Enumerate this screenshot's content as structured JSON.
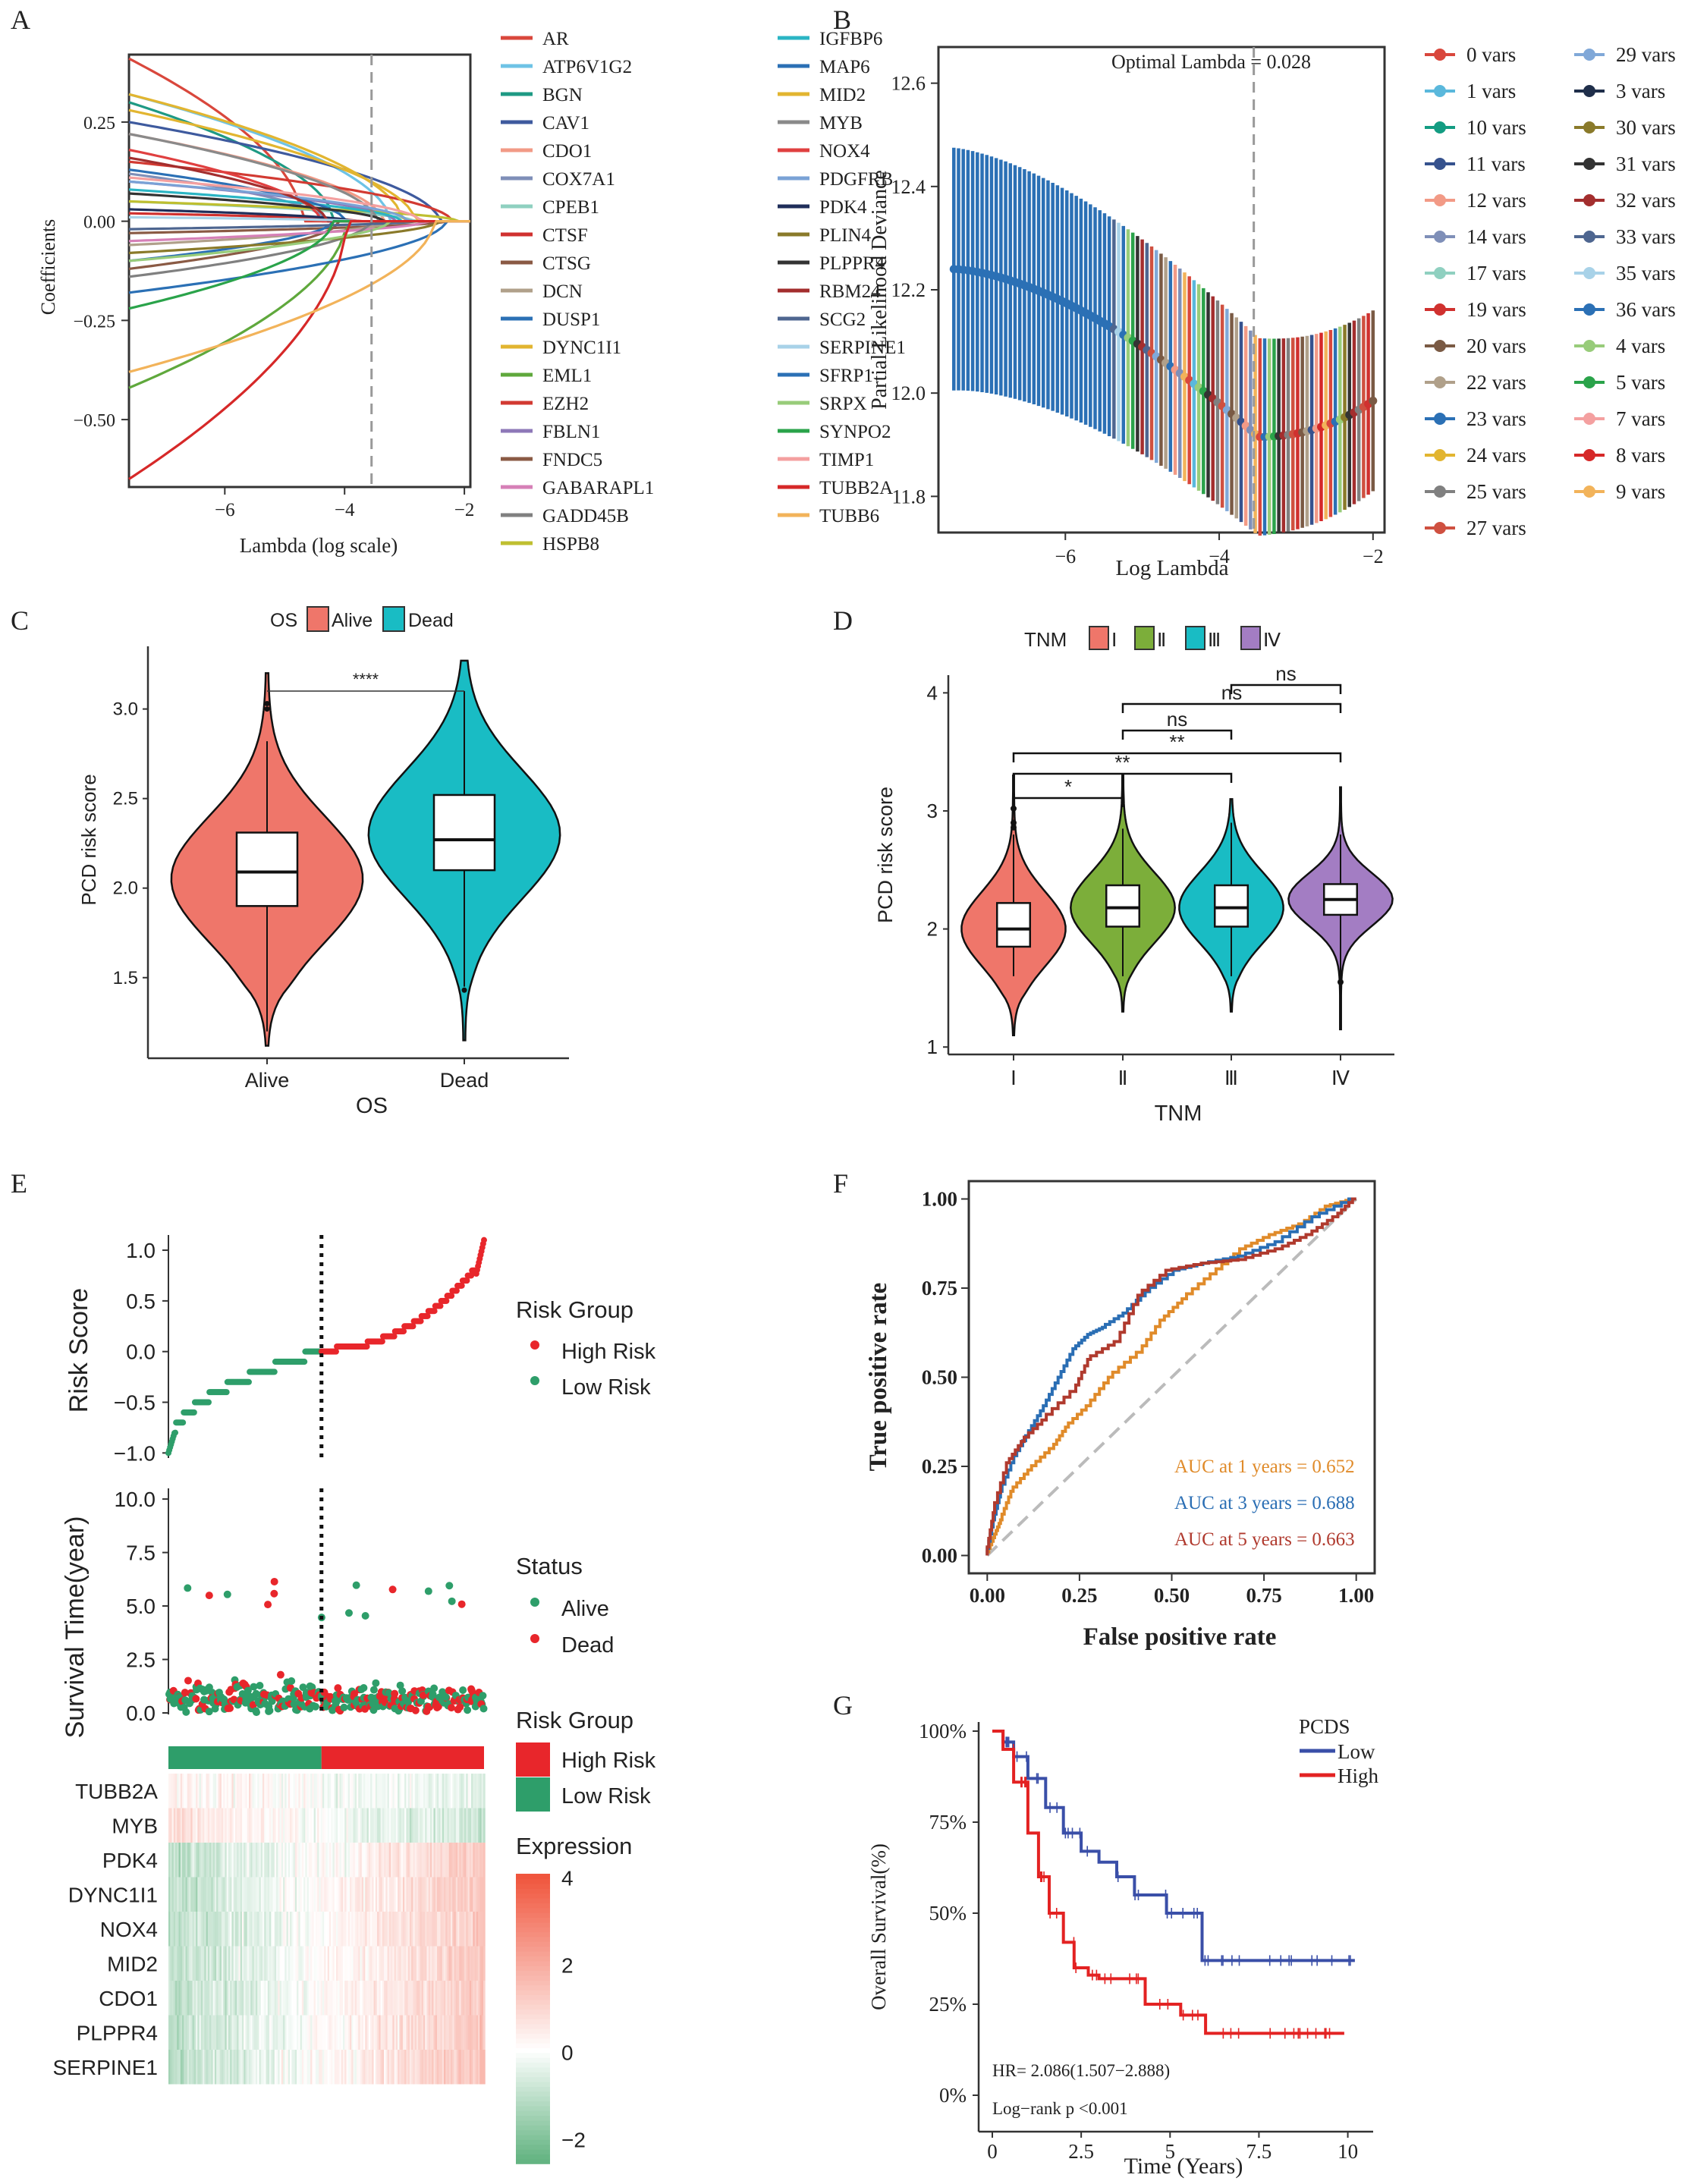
{
  "panel_labels": {
    "A": "A",
    "B": "B",
    "C": "C",
    "D": "D",
    "E": "E",
    "F": "F",
    "G": "G"
  },
  "colors": {
    "alive": "#EF766A",
    "dead": "#19BCC4",
    "stageI": "#EF766A",
    "stageII": "#7CAE3A",
    "stageIII": "#19BCC4",
    "stageIV": "#A37DC3",
    "high_risk": "#E8262B",
    "low_risk": "#2E9E6A",
    "auc1": "#E08B2A",
    "auc3": "#2A6EB4",
    "auc5": "#B03A2E",
    "km_low": "#3A4FA8",
    "km_high": "#E32222"
  },
  "panelA": {
    "xlabel": "Lambda (log scale)",
    "ylabel": "Coefficients",
    "xticks": [
      "−6",
      "−4",
      "−2"
    ],
    "xtick_values": [
      -6,
      -4,
      -2
    ],
    "yticks": [
      "−0.50",
      "−0.25",
      "0.00",
      "0.25"
    ],
    "ytick_values": [
      -0.5,
      -0.25,
      0,
      0.25
    ],
    "xlim": [
      -7.6,
      -1.9
    ],
    "ylim": [
      -0.67,
      0.42
    ],
    "optimal_log_lambda": -3.55,
    "legend": [
      {
        "name": "AR",
        "color": "#D9473C"
      },
      {
        "name": "ATP6V1G2",
        "color": "#6EC3E6"
      },
      {
        "name": "BGN",
        "color": "#1E9A84"
      },
      {
        "name": "CAV1",
        "color": "#3E5A9E"
      },
      {
        "name": "CDO1",
        "color": "#F29A86"
      },
      {
        "name": "COX7A1",
        "color": "#7F8FB8"
      },
      {
        "name": "CPEB1",
        "color": "#8FD0C0"
      },
      {
        "name": "CTSF",
        "color": "#D0312F"
      },
      {
        "name": "CTSG",
        "color": "#8A5A44"
      },
      {
        "name": "DCN",
        "color": "#B0A08A"
      },
      {
        "name": "DUSP1",
        "color": "#2B70B5"
      },
      {
        "name": "DYNC1I1",
        "color": "#E2B530"
      },
      {
        "name": "EML1",
        "color": "#5FA83C"
      },
      {
        "name": "EZH2",
        "color": "#D23A32"
      },
      {
        "name": "FBLN1",
        "color": "#8E78B8"
      },
      {
        "name": "FNDC5",
        "color": "#8A5A44"
      },
      {
        "name": "GABARAPL1",
        "color": "#D680B7"
      },
      {
        "name": "GADD45B",
        "color": "#808080"
      },
      {
        "name": "HSPB8",
        "color": "#BFBF30"
      },
      {
        "name": "IGFBP6",
        "color": "#2BB5C4"
      },
      {
        "name": "MAP6",
        "color": "#2B70B5"
      },
      {
        "name": "MID2",
        "color": "#E2B530"
      },
      {
        "name": "MYB",
        "color": "#8A8A8A"
      },
      {
        "name": "NOX4",
        "color": "#E04040"
      },
      {
        "name": "PDGFRB",
        "color": "#7AA2D6"
      },
      {
        "name": "PDK4",
        "color": "#1F2E5A"
      },
      {
        "name": "PLIN4",
        "color": "#8A7A2A"
      },
      {
        "name": "PLPPR4",
        "color": "#333333"
      },
      {
        "name": "RBM24",
        "color": "#A32E2E"
      },
      {
        "name": "SCG2",
        "color": "#4E6690"
      },
      {
        "name": "SERPINE1",
        "color": "#A8D2E8"
      },
      {
        "name": "SFRP1",
        "color": "#2B70B5"
      },
      {
        "name": "SRPX",
        "color": "#98CC7A"
      },
      {
        "name": "SYNPO2",
        "color": "#2AA34A"
      },
      {
        "name": "TIMP1",
        "color": "#F4A0A0"
      },
      {
        "name": "TUBB2A",
        "color": "#D62828"
      },
      {
        "name": "TUBB6",
        "color": "#F2B35A"
      }
    ],
    "paths_start": [
      0.41,
      0.32,
      0.3,
      0.25,
      0.22,
      0.12,
      0.05,
      0.02,
      -0.03,
      -0.06,
      -0.1,
      0.32,
      -0.42,
      0.15,
      0.1,
      -0.12,
      -0.05,
      -0.14,
      0.05,
      0.08,
      0.13,
      0.28,
      0.22,
      0.18,
      0.1,
      0.03,
      -0.08,
      0.07,
      0.16,
      -0.02,
      0.01,
      -0.18,
      -0.1,
      -0.22,
      0.11,
      -0.65,
      -0.38
    ]
  },
  "panelB": {
    "xlabel": "Log Lambda",
    "ylabel": "Partial Likelihood Deviance",
    "annotation": "Optimal Lambda = 0.028",
    "xticks": [
      "−6",
      "−4",
      "−2"
    ],
    "xtick_values": [
      -6,
      -4,
      -2
    ],
    "yticks": [
      "11.8",
      "12.0",
      "12.2",
      "12.4",
      "12.6"
    ],
    "ytick_values": [
      11.8,
      12.0,
      12.2,
      12.4,
      12.6
    ],
    "xlim": [
      -7.65,
      -1.85
    ],
    "ylim": [
      11.73,
      12.67
    ],
    "optimal_log_lambda": -3.55,
    "legend": [
      {
        "label": "0 vars",
        "color": "#D9473C"
      },
      {
        "label": "1 vars",
        "color": "#5AB8DC"
      },
      {
        "label": "10 vars",
        "color": "#139C82"
      },
      {
        "label": "11 vars",
        "color": "#36528E"
      },
      {
        "label": "12 vars",
        "color": "#F29A86"
      },
      {
        "label": "14 vars",
        "color": "#7F8FB8"
      },
      {
        "label": "17 vars",
        "color": "#8FD0C0"
      },
      {
        "label": "19 vars",
        "color": "#D0312F"
      },
      {
        "label": "20 vars",
        "color": "#7A5A44"
      },
      {
        "label": "22 vars",
        "color": "#B0A08A"
      },
      {
        "label": "23 vars",
        "color": "#2B70B5"
      },
      {
        "label": "24 vars",
        "color": "#E2B530"
      },
      {
        "label": "25 vars",
        "color": "#808080"
      },
      {
        "label": "27 vars",
        "color": "#CF5040"
      },
      {
        "label": "29 vars",
        "color": "#80A8D8"
      },
      {
        "label": "3 vars",
        "color": "#1F2E4A"
      },
      {
        "label": "30 vars",
        "color": "#8A7A2A"
      },
      {
        "label": "31 vars",
        "color": "#333333"
      },
      {
        "label": "32 vars",
        "color": "#A32E2E"
      },
      {
        "label": "33 vars",
        "color": "#4E6690"
      },
      {
        "label": "35 vars",
        "color": "#A8D2E8"
      },
      {
        "label": "36 vars",
        "color": "#2B70B5"
      },
      {
        "label": "4 vars",
        "color": "#98CC7A"
      },
      {
        "label": "5 vars",
        "color": "#2AA34A"
      },
      {
        "label": "7 vars",
        "color": "#F4A0A0"
      },
      {
        "label": "8 vars",
        "color": "#D62828"
      },
      {
        "label": "9 vars",
        "color": "#F2B35A"
      }
    ]
  },
  "panelC": {
    "legend_title": "OS",
    "legend_items": [
      "Alive",
      "Dead"
    ],
    "xlabel": "OS",
    "ylabel": "PCD risk score",
    "categories": [
      "Alive",
      "Dead"
    ],
    "yticks": [
      "1.5",
      "2.0",
      "2.5",
      "3.0"
    ],
    "ytick_values": [
      1.5,
      2.0,
      2.5,
      3.0
    ],
    "ylim": [
      1.05,
      3.35
    ],
    "significance": "****",
    "boxes": [
      {
        "min": 1.2,
        "q1": 1.9,
        "median": 2.09,
        "q3": 2.31,
        "max": 2.82,
        "violin_min": 1.12,
        "violin_max": 3.2,
        "mode": 2.05
      },
      {
        "min": 1.45,
        "q1": 2.1,
        "median": 2.27,
        "q3": 2.52,
        "max": 3.1,
        "violin_min": 1.15,
        "violin_max": 3.27,
        "mode": 2.3
      }
    ]
  },
  "panelD": {
    "legend_title": "TNM",
    "legend_items": [
      "Ⅰ",
      "Ⅱ",
      "Ⅲ",
      "Ⅳ"
    ],
    "xlabel": "TNM",
    "ylabel": "PCD risk score",
    "categories": [
      "Ⅰ",
      "Ⅱ",
      "Ⅲ",
      "Ⅳ"
    ],
    "yticks": [
      "1",
      "2",
      "3",
      "4"
    ],
    "ytick_values": [
      1,
      2,
      3,
      4
    ],
    "ylim": [
      0.95,
      4.15
    ],
    "comparisons": [
      {
        "pair": [
          0,
          1
        ],
        "label": "*"
      },
      {
        "pair": [
          0,
          2
        ],
        "label": "**"
      },
      {
        "pair": [
          0,
          3
        ],
        "label": "**"
      },
      {
        "pair": [
          1,
          2
        ],
        "label": "ns"
      },
      {
        "pair": [
          1,
          3
        ],
        "label": "ns"
      },
      {
        "pair": [
          2,
          3
        ],
        "label": "ns"
      }
    ],
    "boxes": [
      {
        "min": 1.6,
        "q1": 1.85,
        "median": 2.0,
        "q3": 2.22,
        "max": 2.8,
        "violin_min": 1.1,
        "violin_max": 3.3
      },
      {
        "min": 1.6,
        "q1": 2.02,
        "median": 2.18,
        "q3": 2.37,
        "max": 2.85,
        "violin_min": 1.3,
        "violin_max": 3.3
      },
      {
        "min": 1.6,
        "q1": 2.02,
        "median": 2.18,
        "q3": 2.37,
        "max": 2.9,
        "violin_min": 1.3,
        "violin_max": 3.1
      },
      {
        "min": 1.55,
        "q1": 2.12,
        "median": 2.25,
        "q3": 2.38,
        "max": 2.8,
        "violin_min": 1.15,
        "violin_max": 3.2
      }
    ]
  },
  "panelE": {
    "risk_ylabel": "Risk Score",
    "risk_yticks": [
      "−1.0",
      "−0.5",
      "0.0",
      "0.5",
      "1.0"
    ],
    "risk_ytick_values": [
      -1,
      -0.5,
      0,
      0.5,
      1
    ],
    "risk_legend_title": "Risk Group",
    "risk_legend_items": [
      "High Risk",
      "Low Risk"
    ],
    "surv_ylabel": "Survival Time(year)",
    "surv_yticks": [
      "0.0",
      "2.5",
      "5.0",
      "7.5",
      "10.0"
    ],
    "surv_ytick_values": [
      0,
      2.5,
      5,
      7.5,
      10
    ],
    "status_legend_title": "Status",
    "status_legend_items": [
      "Alive",
      "Dead"
    ],
    "heat_legend_title": "Risk Group",
    "heat_legend_items": [
      "High Risk",
      "Low Risk"
    ],
    "expr_title": "Expression",
    "expr_ticks": [
      "4",
      "2",
      "0",
      "−2"
    ],
    "expr_tick_values": [
      4,
      2,
      0,
      -2
    ],
    "genes": [
      "TUBB2A",
      "MYB",
      "PDK4",
      "DYNC1I1",
      "NOX4",
      "MID2",
      "CDO1",
      "PLPPR4",
      "SERPINE1"
    ],
    "gene_trend": [
      -0.3,
      -0.6,
      0.9,
      0.9,
      0.9,
      0.9,
      0.9,
      0.9,
      1.0
    ],
    "n_patients": 370,
    "cutoff_fraction": 0.485
  },
  "panelF": {
    "xlabel": "False positive rate",
    "ylabel": "True positive rate",
    "xticks": [
      "0.00",
      "0.25",
      "0.50",
      "0.75",
      "1.00"
    ],
    "yticks": [
      "0.00",
      "0.25",
      "0.50",
      "0.75",
      "1.00"
    ],
    "tick_values": [
      0,
      0.25,
      0.5,
      0.75,
      1
    ],
    "legend": [
      "AUC at 1 years = 0.652",
      "AUC at 3 years = 0.688",
      "AUC at 5 years = 0.663"
    ],
    "series": [
      {
        "name": "1 years",
        "points": [
          [
            0,
            0
          ],
          [
            0.02,
            0.05
          ],
          [
            0.04,
            0.1
          ],
          [
            0.07,
            0.18
          ],
          [
            0.12,
            0.24
          ],
          [
            0.18,
            0.3
          ],
          [
            0.22,
            0.36
          ],
          [
            0.28,
            0.42
          ],
          [
            0.34,
            0.5
          ],
          [
            0.42,
            0.57
          ],
          [
            0.48,
            0.66
          ],
          [
            0.54,
            0.72
          ],
          [
            0.62,
            0.79
          ],
          [
            0.7,
            0.86
          ],
          [
            0.78,
            0.9
          ],
          [
            0.86,
            0.93
          ],
          [
            0.93,
            0.98
          ],
          [
            1,
            1
          ]
        ]
      },
      {
        "name": "3 years",
        "points": [
          [
            0,
            0
          ],
          [
            0.02,
            0.1
          ],
          [
            0.04,
            0.18
          ],
          [
            0.08,
            0.28
          ],
          [
            0.12,
            0.35
          ],
          [
            0.16,
            0.42
          ],
          [
            0.2,
            0.5
          ],
          [
            0.24,
            0.58
          ],
          [
            0.28,
            0.62
          ],
          [
            0.32,
            0.64
          ],
          [
            0.38,
            0.68
          ],
          [
            0.44,
            0.74
          ],
          [
            0.52,
            0.8
          ],
          [
            0.6,
            0.82
          ],
          [
            0.7,
            0.84
          ],
          [
            0.8,
            0.88
          ],
          [
            0.9,
            0.95
          ],
          [
            1,
            1
          ]
        ]
      },
      {
        "name": "5 years",
        "points": [
          [
            0,
            0
          ],
          [
            0.02,
            0.12
          ],
          [
            0.06,
            0.26
          ],
          [
            0.1,
            0.32
          ],
          [
            0.16,
            0.38
          ],
          [
            0.24,
            0.46
          ],
          [
            0.28,
            0.55
          ],
          [
            0.36,
            0.6
          ],
          [
            0.42,
            0.73
          ],
          [
            0.5,
            0.8
          ],
          [
            0.6,
            0.82
          ],
          [
            0.7,
            0.83
          ],
          [
            0.8,
            0.86
          ],
          [
            0.88,
            0.9
          ],
          [
            0.95,
            0.95
          ],
          [
            1,
            1
          ]
        ]
      }
    ]
  },
  "panelG": {
    "xlabel": "Time (Years)",
    "ylabel": "Overall Survival(%)",
    "legend_title": "PCDS",
    "legend_items": [
      "Low",
      "High"
    ],
    "xticks": [
      "0",
      "2.5",
      "5",
      "7.5",
      "10"
    ],
    "xtick_values": [
      0,
      2.5,
      5,
      7.5,
      10
    ],
    "yticks": [
      "0%",
      "25%",
      "50%",
      "75%",
      "100%"
    ],
    "ytick_values": [
      0,
      0.25,
      0.5,
      0.75,
      1
    ],
    "hr_text": "HR= 2.086(1.507−2.888)",
    "logrank_text": "Log−rank p  <0.001",
    "series": [
      {
        "name": "Low",
        "points": [
          [
            0,
            1
          ],
          [
            0.3,
            0.97
          ],
          [
            0.6,
            0.93
          ],
          [
            1,
            0.87
          ],
          [
            1.5,
            0.79
          ],
          [
            2,
            0.72
          ],
          [
            2.5,
            0.67
          ],
          [
            3,
            0.64
          ],
          [
            3.5,
            0.6
          ],
          [
            4,
            0.55
          ],
          [
            4.8,
            0.55
          ],
          [
            4.9,
            0.5
          ],
          [
            5.8,
            0.5
          ],
          [
            5.9,
            0.37
          ],
          [
            10.2,
            0.37
          ]
        ]
      },
      {
        "name": "High",
        "points": [
          [
            0,
            1
          ],
          [
            0.3,
            0.95
          ],
          [
            0.6,
            0.86
          ],
          [
            1,
            0.72
          ],
          [
            1.3,
            0.6
          ],
          [
            1.6,
            0.5
          ],
          [
            2,
            0.42
          ],
          [
            2.3,
            0.35
          ],
          [
            2.7,
            0.33
          ],
          [
            3,
            0.32
          ],
          [
            4.2,
            0.32
          ],
          [
            4.3,
            0.25
          ],
          [
            5.2,
            0.25
          ],
          [
            5.3,
            0.22
          ],
          [
            5.9,
            0.22
          ],
          [
            6,
            0.17
          ],
          [
            9.9,
            0.17
          ]
        ]
      }
    ]
  }
}
